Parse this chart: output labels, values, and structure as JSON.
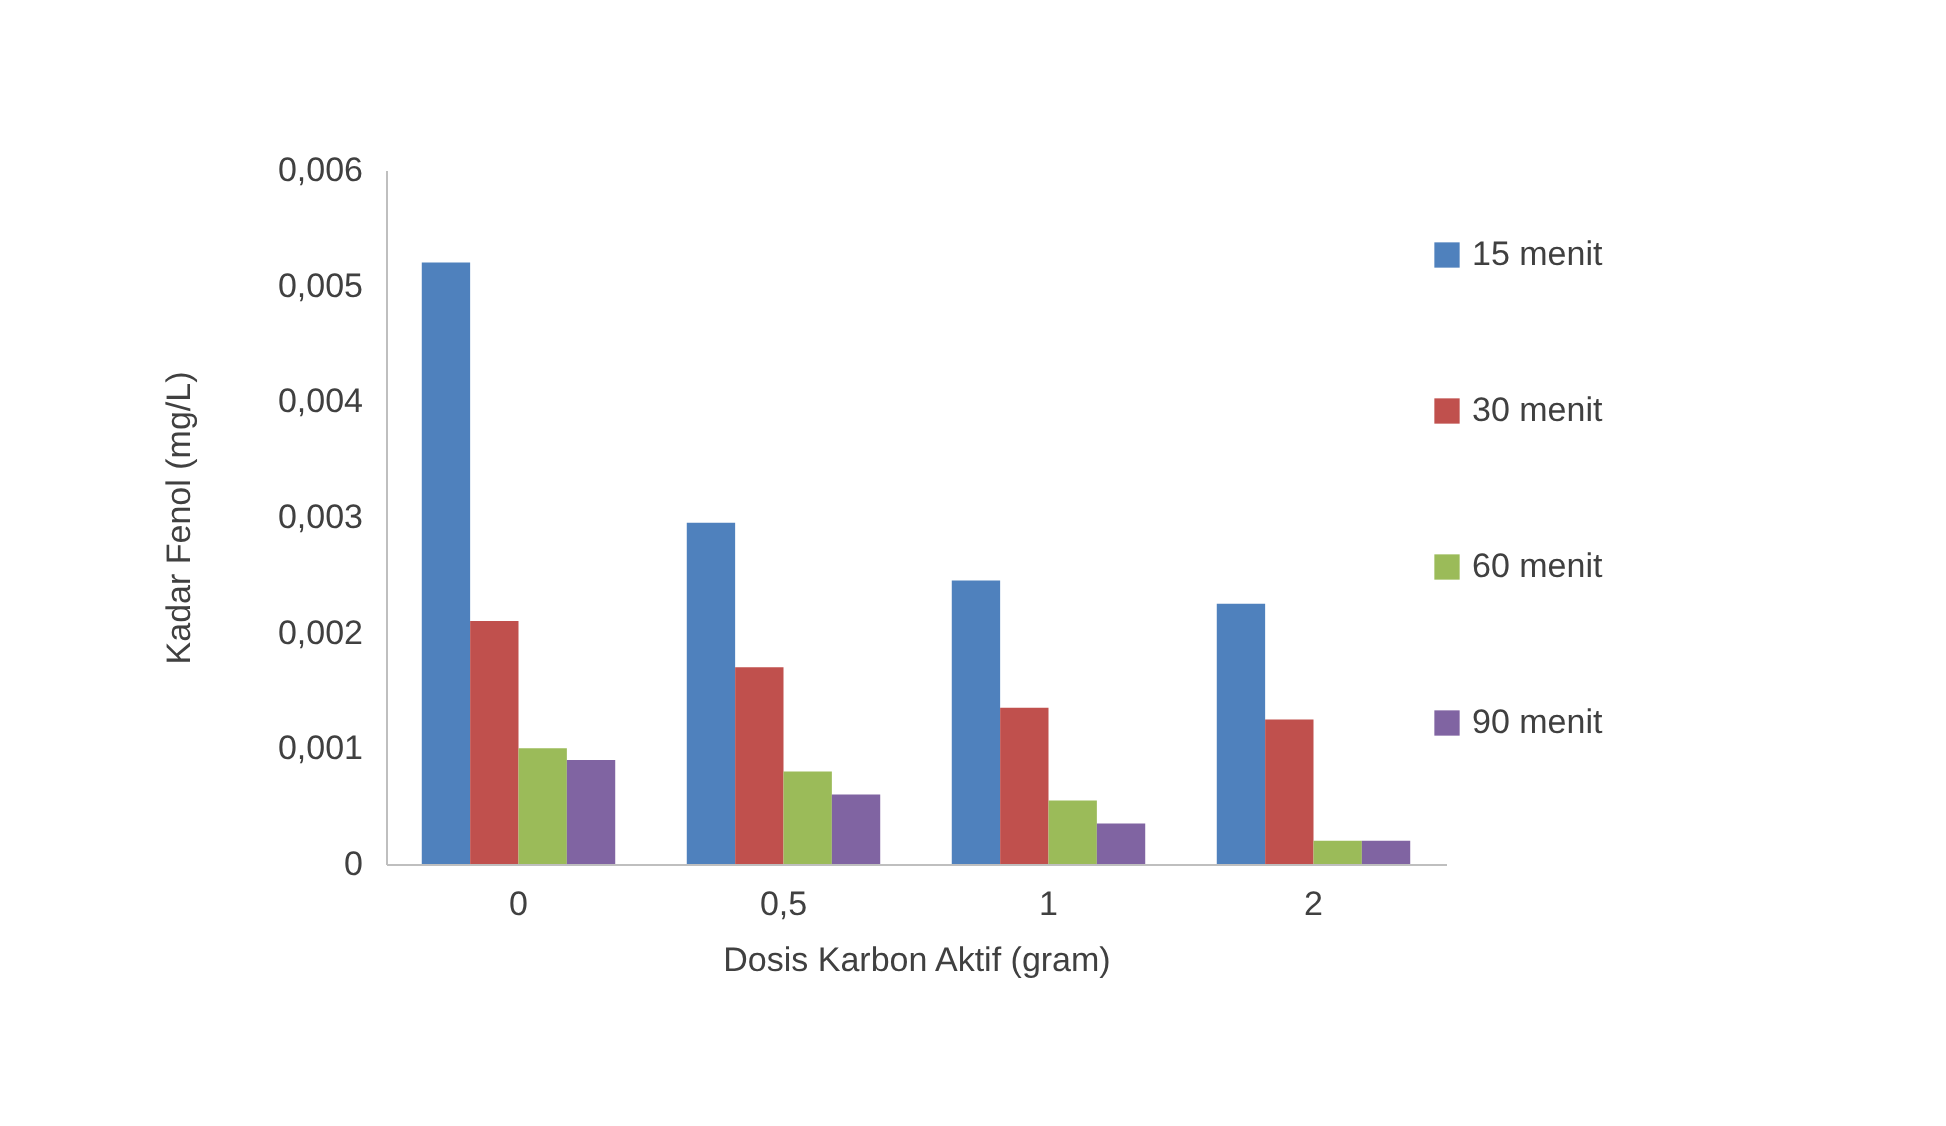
{
  "chart_data": {
    "type": "bar",
    "xlabel": "Dosis Karbon Aktif (gram)",
    "ylabel": "Kadar Fenol (mg/L)",
    "categories": [
      "0",
      "0,5",
      "1",
      "2"
    ],
    "series": [
      {
        "name": "15 menit",
        "color": "#4f81bd",
        "values": [
          0.0052,
          0.00295,
          0.00245,
          0.00225
        ]
      },
      {
        "name": "30 menit",
        "color": "#c0504d",
        "values": [
          0.0021,
          0.0017,
          0.00135,
          0.00125
        ]
      },
      {
        "name": "60 menit",
        "color": "#9bbb59",
        "values": [
          0.001,
          0.0008,
          0.00055,
          0.0002
        ]
      },
      {
        "name": "90 menit",
        "color": "#8064a2",
        "values": [
          0.0009,
          0.0006,
          0.00035,
          0.0002
        ]
      }
    ],
    "ylim": [
      0,
      0.006
    ],
    "yticks": [
      0,
      {
        "value": 0.001,
        "label": "0,001"
      },
      {
        "value": 0.002,
        "label": "0,002"
      },
      {
        "value": 0.003,
        "label": "0,003"
      },
      {
        "value": 0.004,
        "label": "0,004"
      },
      {
        "value": 0.005,
        "label": "0,005"
      },
      {
        "value": 0.006,
        "label": "0,006"
      }
    ],
    "grid": false,
    "legend": "right"
  }
}
